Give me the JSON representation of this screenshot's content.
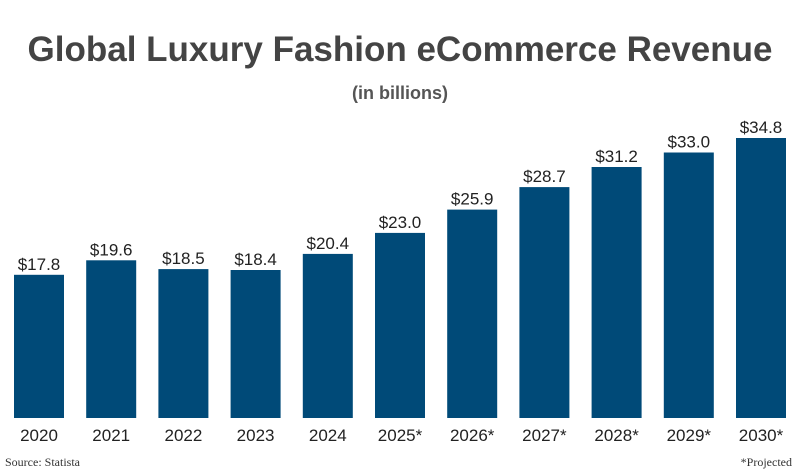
{
  "chart_data": {
    "type": "bar",
    "title": "Global Luxury Fashion eCommerce Revenue",
    "subtitle": "(in billions)",
    "categories": [
      "2020",
      "2021",
      "2022",
      "2023",
      "2024",
      "2025*",
      "2026*",
      "2027*",
      "2028*",
      "2029*",
      "2030*"
    ],
    "values": [
      17.8,
      19.6,
      18.5,
      18.4,
      20.4,
      23.0,
      25.9,
      28.7,
      31.2,
      33.0,
      34.8
    ],
    "data_labels": [
      "$17.8",
      "$19.6",
      "$18.5",
      "$18.4",
      "$20.4",
      "$23.0",
      "$25.9",
      "$28.7",
      "$31.2",
      "$33.0",
      "$34.8"
    ],
    "ylim": [
      0,
      34.8
    ],
    "grid": false,
    "legend": "none",
    "bar_color": "#004a78"
  },
  "footer": {
    "source": "Source: Statista",
    "note": "*Projected"
  }
}
